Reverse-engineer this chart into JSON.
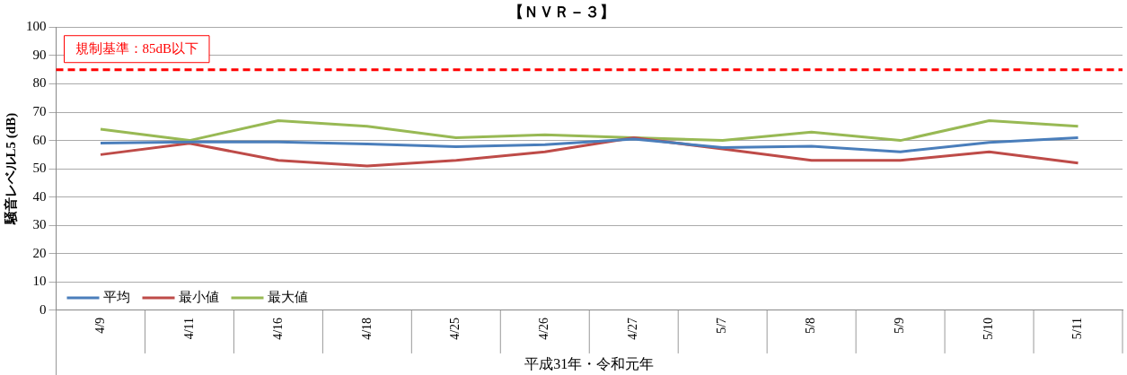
{
  "chart_data": {
    "type": "line",
    "title": "【ＮＶＲ－３】",
    "xlabel": "平成31年・令和元年",
    "ylabel": "騒音レベルL5 (dB)",
    "categories": [
      "4/9",
      "4/11",
      "4/16",
      "4/18",
      "4/25",
      "4/26",
      "4/27",
      "5/7",
      "5/8",
      "5/9",
      "5/10",
      "5/11"
    ],
    "series": [
      {
        "name": "平均",
        "color": "#4a7ebb",
        "values": [
          59.1,
          59.5,
          59.5,
          58.8,
          57.8,
          58.5,
          60.5,
          57.5,
          58,
          56,
          59.3,
          61
        ]
      },
      {
        "name": "最小値",
        "color": "#be4b48",
        "values": [
          55,
          59,
          53,
          51,
          53,
          56,
          61,
          57,
          53,
          53,
          56,
          52
        ]
      },
      {
        "name": "最大値",
        "color": "#98b954",
        "values": [
          64,
          60,
          67,
          65,
          61,
          62,
          61,
          60,
          63,
          60,
          67,
          65
        ]
      }
    ],
    "ylim": [
      0,
      100
    ],
    "yticks": [
      0,
      10,
      20,
      30,
      40,
      50,
      60,
      70,
      80,
      90,
      100
    ],
    "grid": "y",
    "legend": "bottom left",
    "marker": "none",
    "line_style": "solid",
    "ref_lines": [
      {
        "axis": "y",
        "value": 85,
        "label": "規制基準：85dB以下",
        "color": "#ff0000",
        "line_style": "dashed"
      }
    ]
  }
}
